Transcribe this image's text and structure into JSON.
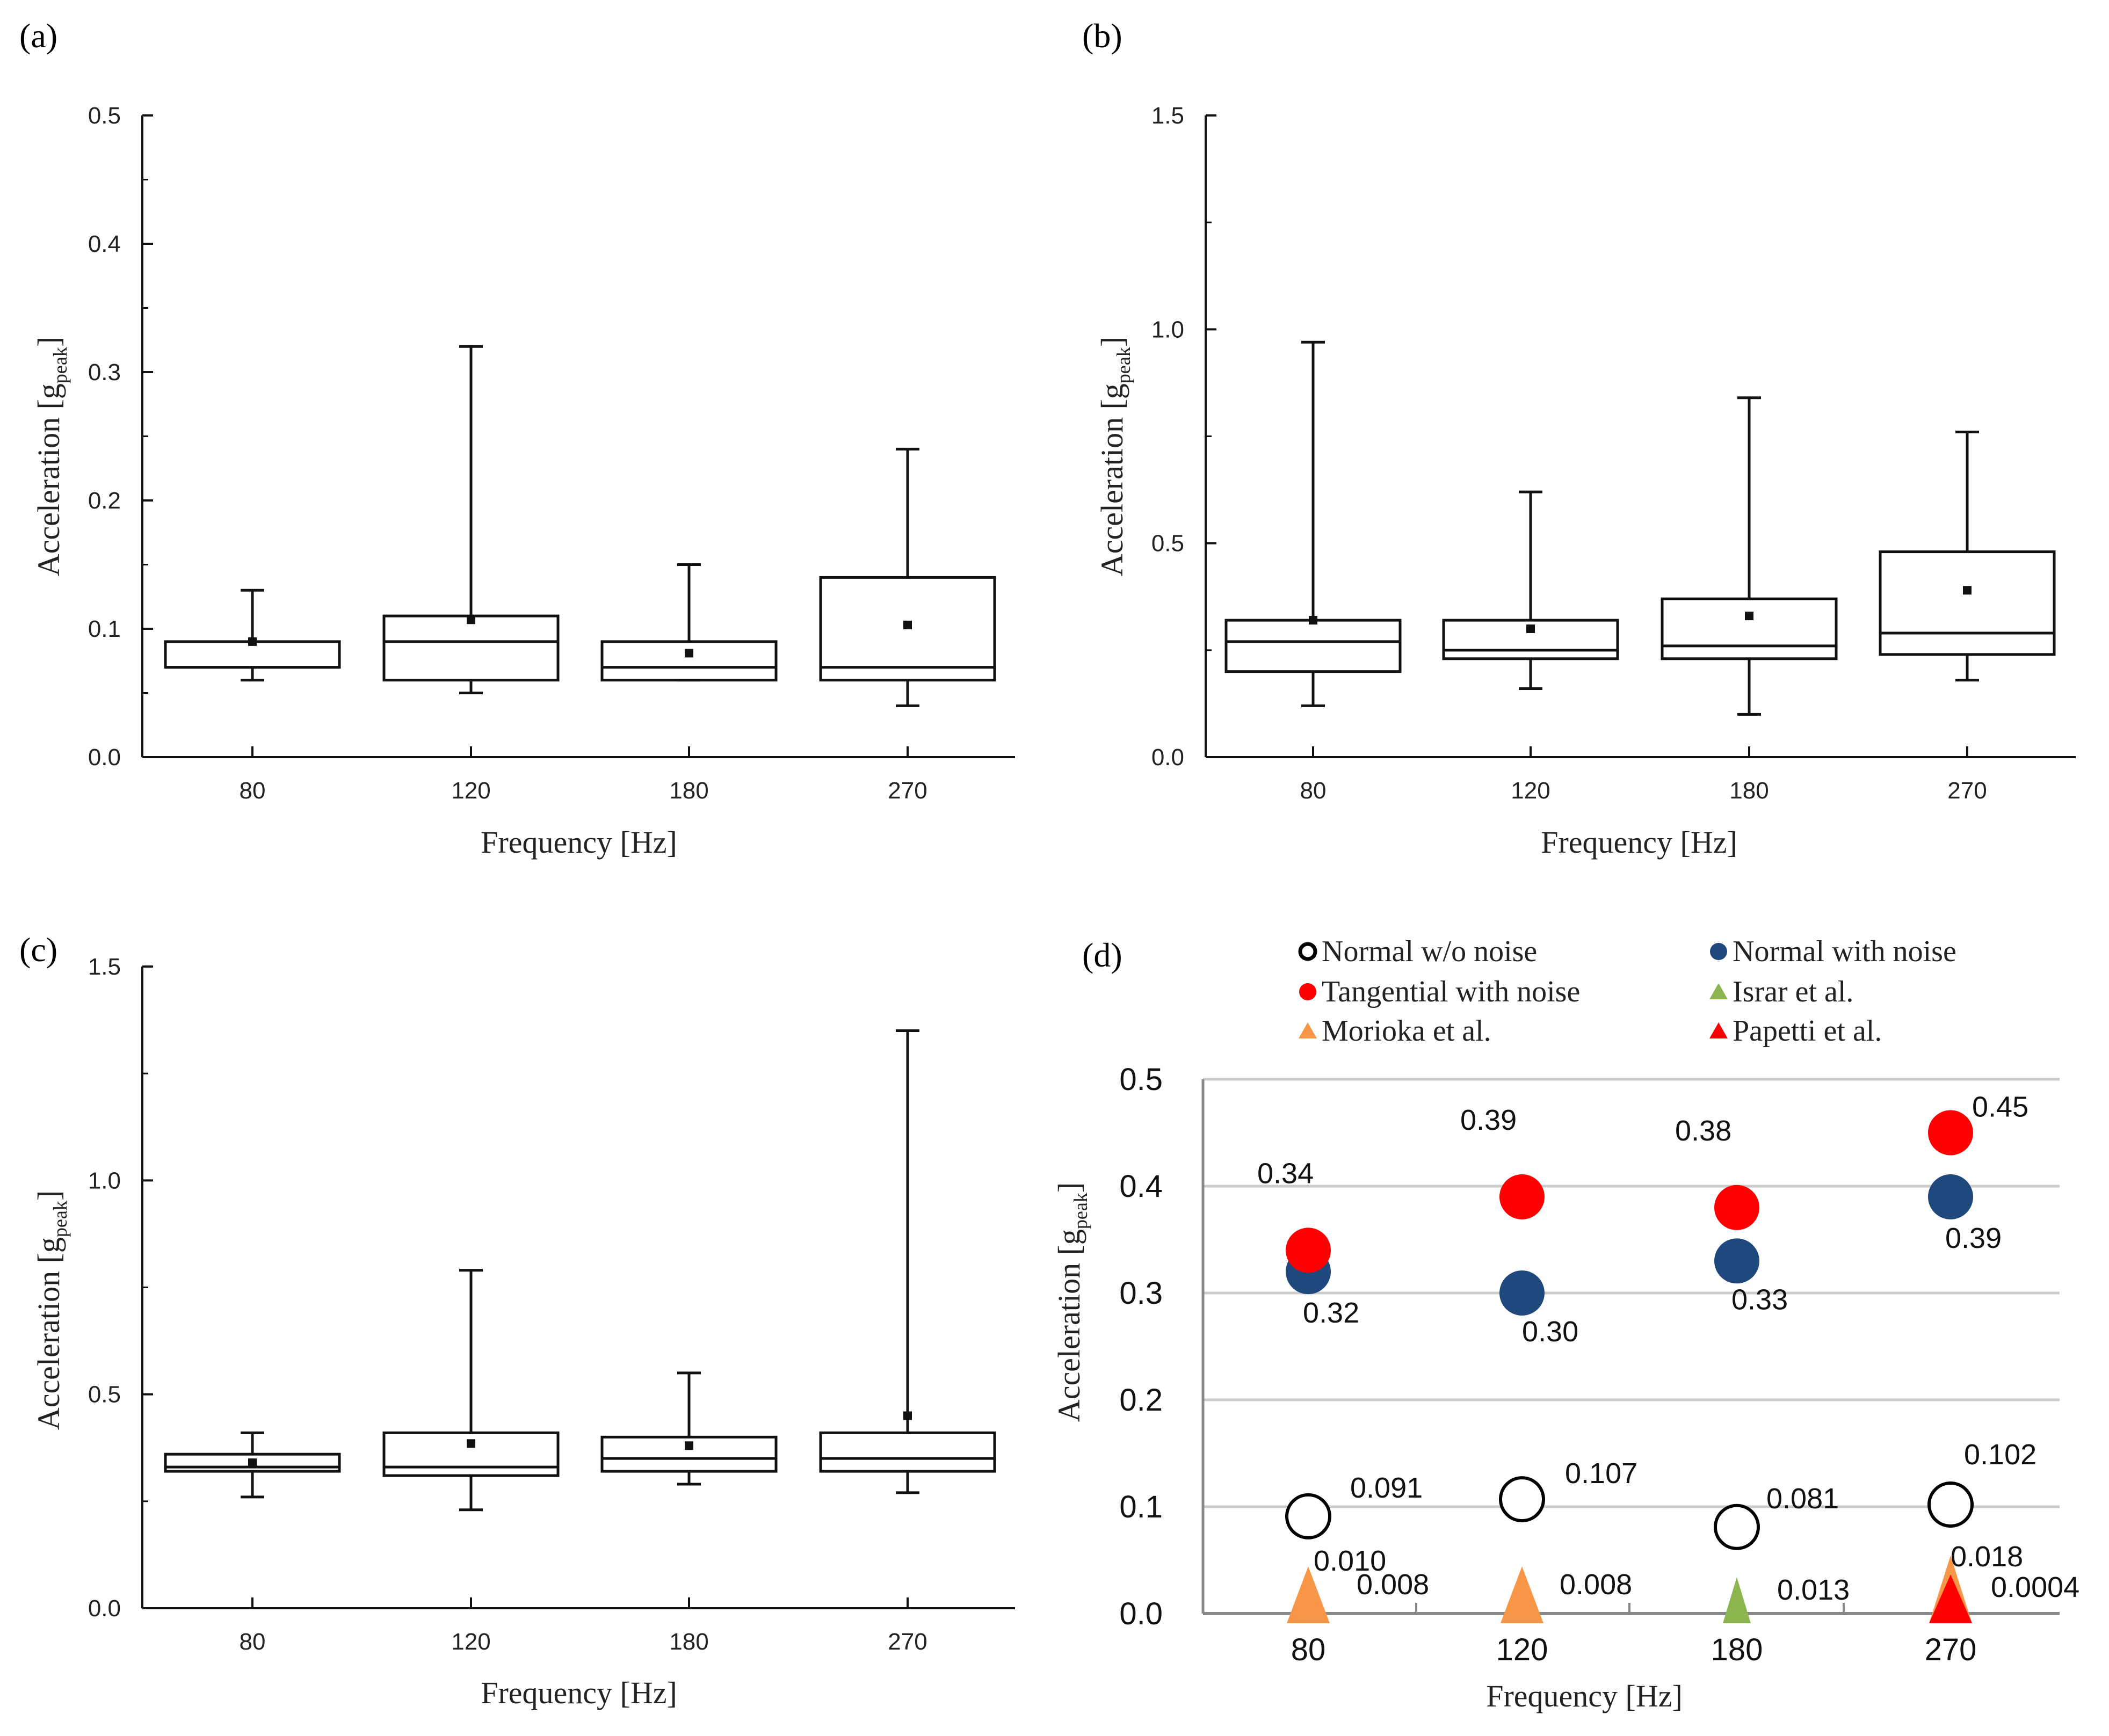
{
  "colors": {
    "axis": "#111111",
    "normal_no_noise": "#000000",
    "normal_with_noise": "#1F497D",
    "tangential_with_noise": "#FF0000",
    "israr": "#8CB550",
    "morioka": "#F79646",
    "papetti": "#FF0000",
    "grid": "#cccccc"
  },
  "chart_data": [
    {
      "panel": "(a)",
      "type": "box",
      "xlabel": "Frequency [Hz]",
      "ylabel": "Acceleration [g",
      "ylabel_sub": "peak",
      "ylabel_end": "]",
      "ylim": [
        0,
        0.5
      ],
      "yticks": [
        "0.0",
        "0.1",
        "0.2",
        "0.3",
        "0.4",
        "0.5"
      ],
      "yticks_values": [
        0,
        0.1,
        0.2,
        0.3,
        0.4,
        0.5
      ],
      "categories": [
        "80",
        "120",
        "180",
        "270"
      ],
      "boxes": [
        {
          "min": 0.06,
          "q1": 0.07,
          "median": 0.07,
          "q3": 0.09,
          "max": 0.13,
          "mean": 0.09
        },
        {
          "min": 0.05,
          "q1": 0.06,
          "median": 0.09,
          "q3": 0.11,
          "max": 0.32,
          "mean": 0.107
        },
        {
          "min": 0.06,
          "q1": 0.06,
          "median": 0.07,
          "q3": 0.09,
          "max": 0.15,
          "mean": 0.081
        },
        {
          "min": 0.04,
          "q1": 0.06,
          "median": 0.07,
          "q3": 0.14,
          "max": 0.24,
          "mean": 0.103
        }
      ]
    },
    {
      "panel": "(b)",
      "type": "box",
      "xlabel": "Frequency [Hz]",
      "ylabel": "Acceleration [g",
      "ylabel_sub": "peak",
      "ylabel_end": "]",
      "ylim": [
        0,
        1.5
      ],
      "yticks": [
        "0.0",
        "0.5",
        "1.0",
        "1.5"
      ],
      "yticks_values": [
        0,
        0.5,
        1.0,
        1.5
      ],
      "categories": [
        "80",
        "120",
        "180",
        "270"
      ],
      "boxes": [
        {
          "min": 0.12,
          "q1": 0.2,
          "median": 0.27,
          "q3": 0.32,
          "max": 0.97,
          "mean": 0.32
        },
        {
          "min": 0.16,
          "q1": 0.23,
          "median": 0.25,
          "q3": 0.32,
          "max": 0.62,
          "mean": 0.3
        },
        {
          "min": 0.1,
          "q1": 0.23,
          "median": 0.26,
          "q3": 0.37,
          "max": 0.84,
          "mean": 0.33
        },
        {
          "min": 0.18,
          "q1": 0.24,
          "median": 0.29,
          "q3": 0.48,
          "max": 0.76,
          "mean": 0.39
        }
      ]
    },
    {
      "panel": "(c)",
      "type": "box",
      "xlabel": "Frequency [Hz]",
      "ylabel": "Acceleration [g",
      "ylabel_sub": "peak",
      "ylabel_end": "]",
      "ylim": [
        0,
        1.5
      ],
      "yticks": [
        "0.0",
        "0.5",
        "1.0",
        "1.5"
      ],
      "yticks_values": [
        0,
        0.5,
        1.0,
        1.5
      ],
      "categories": [
        "80",
        "120",
        "180",
        "270"
      ],
      "boxes": [
        {
          "min": 0.26,
          "q1": 0.32,
          "median": 0.33,
          "q3": 0.36,
          "max": 0.41,
          "mean": 0.34
        },
        {
          "min": 0.23,
          "q1": 0.31,
          "median": 0.33,
          "q3": 0.41,
          "max": 0.79,
          "mean": 0.385
        },
        {
          "min": 0.29,
          "q1": 0.32,
          "median": 0.35,
          "q3": 0.4,
          "max": 0.55,
          "mean": 0.38
        },
        {
          "min": 0.27,
          "q1": 0.32,
          "median": 0.35,
          "q3": 0.41,
          "max": 1.35,
          "mean": 0.45
        }
      ]
    },
    {
      "panel": "(d)",
      "type": "scatter",
      "xlabel": "Frequency [Hz]",
      "ylabel": "Acceleration [g",
      "ylabel_sub": "peak",
      "ylabel_end": "]",
      "ylim": [
        0,
        0.5
      ],
      "yticks": [
        "0.0",
        "0.1",
        "0.2",
        "0.3",
        "0.4",
        "0.5"
      ],
      "yticks_values": [
        0,
        0.1,
        0.2,
        0.3,
        0.4,
        0.5
      ],
      "categories": [
        "80",
        "120",
        "180",
        "270"
      ],
      "legend": [
        {
          "name": "Normal w/o noise",
          "marker": "open-circle",
          "color": "#000000"
        },
        {
          "name": "Normal with noise",
          "marker": "circle",
          "color": "#1F497D"
        },
        {
          "name": "Tangential with noise",
          "marker": "circle",
          "color": "#FF0000"
        },
        {
          "name": "Israr et al.",
          "marker": "triangle",
          "color": "#8CB550"
        },
        {
          "name": "Morioka et al.",
          "marker": "triangle",
          "color": "#F79646"
        },
        {
          "name": "Papetti et al.",
          "marker": "triangle",
          "color": "#FF0000"
        }
      ],
      "series": [
        {
          "name": "Normal w/o noise",
          "values": [
            0.091,
            0.107,
            0.081,
            0.102
          ],
          "labels": [
            "0.091",
            "0.107",
            "0.081",
            "0.102"
          ]
        },
        {
          "name": "Normal with noise",
          "values": [
            0.32,
            0.3,
            0.33,
            0.39
          ],
          "labels": [
            "0.32",
            "0.30",
            "0.33",
            "0.39"
          ]
        },
        {
          "name": "Tangential with noise",
          "values": [
            0.34,
            0.39,
            0.38,
            0.45
          ],
          "labels": [
            "0.34",
            "0.39",
            "0.38",
            "0.45"
          ]
        },
        {
          "name": "Morioka et al.",
          "points": [
            {
              "category": "80",
              "value": 0.01,
              "label": "0.010"
            },
            {
              "category": "80",
              "value": 0.008,
              "label": "0.008"
            },
            {
              "category": "120",
              "value": 0.008,
              "label": "0.008"
            },
            {
              "category": "270",
              "value": 0.018,
              "label": "0.018"
            }
          ]
        },
        {
          "name": "Israr et al.",
          "points": [
            {
              "category": "180",
              "value": 0.013,
              "label": "0.013"
            }
          ]
        },
        {
          "name": "Papetti et al.",
          "points": [
            {
              "category": "270",
              "value": 0.0004,
              "label": "0.0004"
            }
          ]
        }
      ]
    }
  ]
}
